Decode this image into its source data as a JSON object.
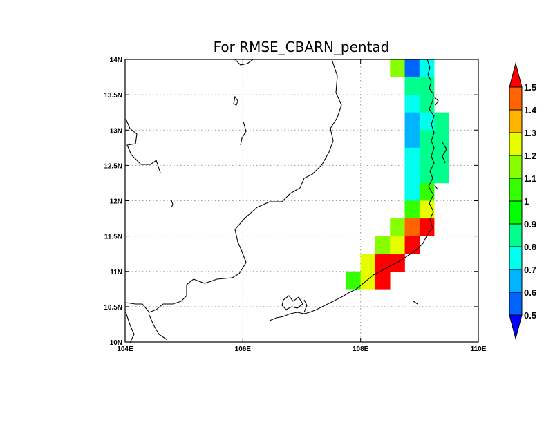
{
  "chart_data": {
    "type": "heatmap",
    "title": "For RMSE_CBARN_pentad",
    "x_ticks": [
      "104E",
      "106E",
      "108E",
      "110E"
    ],
    "y_ticks": [
      "10N",
      "10.5N",
      "11N",
      "11.5N",
      "12N",
      "12.5N",
      "13N",
      "13.5N",
      "14N"
    ],
    "xlim": [
      104,
      110
    ],
    "ylim": [
      10,
      14
    ],
    "grid": true,
    "colorbar": {
      "placement": "right",
      "labels": [
        "0.5",
        "0.6",
        "0.7",
        "0.8",
        "0.9",
        "1",
        "1.1",
        "1.2",
        "1.3",
        "1.4",
        "1.5"
      ],
      "colors": [
        "#0000ff",
        "#0064ff",
        "#00b4ff",
        "#00ffee",
        "#00ff8c",
        "#00ff00",
        "#33ff00",
        "#88ff00",
        "#e6ff00",
        "#ffb400",
        "#ff6400",
        "#ff0000"
      ],
      "below_color": "#0000ff",
      "above_color": "#ff0000"
    },
    "cell_size_deg": [
      0.25,
      0.25
    ],
    "cells": [
      {
        "lon": 108.625,
        "lat": 13.875,
        "value": 1.1
      },
      {
        "lon": 108.875,
        "lat": 13.875,
        "value": 0.55
      },
      {
        "lon": 109.125,
        "lat": 13.875,
        "value": 0.75
      },
      {
        "lon": 108.875,
        "lat": 13.625,
        "value": 0.85
      },
      {
        "lon": 109.125,
        "lat": 13.625,
        "value": 0.85
      },
      {
        "lon": 108.875,
        "lat": 13.375,
        "value": 0.75
      },
      {
        "lon": 109.125,
        "lat": 13.375,
        "value": 0.85
      },
      {
        "lon": 108.875,
        "lat": 13.125,
        "value": 0.65
      },
      {
        "lon": 109.125,
        "lat": 13.125,
        "value": 0.75
      },
      {
        "lon": 109.375,
        "lat": 13.125,
        "value": 0.85
      },
      {
        "lon": 108.875,
        "lat": 12.875,
        "value": 0.65
      },
      {
        "lon": 109.125,
        "lat": 12.875,
        "value": 0.85
      },
      {
        "lon": 109.375,
        "lat": 12.875,
        "value": 0.85
      },
      {
        "lon": 108.875,
        "lat": 12.625,
        "value": 0.75
      },
      {
        "lon": 109.125,
        "lat": 12.625,
        "value": 0.85
      },
      {
        "lon": 109.375,
        "lat": 12.625,
        "value": 0.85
      },
      {
        "lon": 108.875,
        "lat": 12.375,
        "value": 0.75
      },
      {
        "lon": 109.125,
        "lat": 12.375,
        "value": 0.85
      },
      {
        "lon": 109.375,
        "lat": 12.375,
        "value": 0.85
      },
      {
        "lon": 108.875,
        "lat": 12.125,
        "value": 0.75
      },
      {
        "lon": 109.125,
        "lat": 12.125,
        "value": 1.05
      },
      {
        "lon": 108.875,
        "lat": 11.875,
        "value": 1.05
      },
      {
        "lon": 109.125,
        "lat": 11.875,
        "value": 1.25
      },
      {
        "lon": 108.625,
        "lat": 11.625,
        "value": 1.15
      },
      {
        "lon": 108.875,
        "lat": 11.625,
        "value": 1.45
      },
      {
        "lon": 109.125,
        "lat": 11.625,
        "value": 1.55
      },
      {
        "lon": 108.375,
        "lat": 11.375,
        "value": 1.15
      },
      {
        "lon": 108.625,
        "lat": 11.375,
        "value": 1.25
      },
      {
        "lon": 108.875,
        "lat": 11.375,
        "value": 1.55
      },
      {
        "lon": 108.125,
        "lat": 11.125,
        "value": 1.25
      },
      {
        "lon": 108.375,
        "lat": 11.125,
        "value": 1.55
      },
      {
        "lon": 108.625,
        "lat": 11.125,
        "value": 1.55
      },
      {
        "lon": 107.875,
        "lat": 10.875,
        "value": 1.05
      },
      {
        "lon": 108.125,
        "lat": 10.875,
        "value": 1.25
      },
      {
        "lon": 108.375,
        "lat": 10.875,
        "value": 1.55
      }
    ]
  }
}
